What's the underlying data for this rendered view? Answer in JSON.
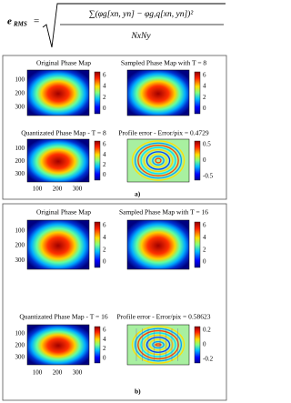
{
  "equation": {
    "lhs": "e",
    "lhs_sub": "RMS",
    "equals": "=",
    "numerator": "∑(φg[xn, yn] − φg,q[xn, yn])²",
    "denominator": "NxNy"
  },
  "panels": [
    {
      "label": "a)",
      "plots": [
        {
          "title": "Original Phase Map",
          "yticks": [
            "100",
            "200",
            "300"
          ],
          "colorbar_ticks": [
            "6",
            "4",
            "2",
            "0"
          ]
        },
        {
          "title": "Sampled Phase Map with T = 8",
          "colorbar_ticks": [
            "6",
            "4",
            "2",
            "0"
          ]
        },
        {
          "title": "Quantizated Phase Map - T = 8",
          "yticks": [
            "100",
            "200",
            "300"
          ],
          "xticks": [
            "100",
            "200",
            "300"
          ],
          "colorbar_ticks": [
            "6",
            "4",
            "2",
            "0"
          ]
        },
        {
          "title": "Profile error - Error/pix = 0.4729",
          "colorbar_ticks": [
            "0.5",
            "0",
            "-0.5"
          ]
        }
      ]
    },
    {
      "label": "b)",
      "plots": [
        {
          "title": "Original Phase Map",
          "yticks": [
            "100",
            "200",
            "300"
          ],
          "colorbar_ticks": [
            "6",
            "4",
            "2",
            "0"
          ]
        },
        {
          "title": "Sampled Phase Map with T = 16",
          "colorbar_ticks": [
            "6",
            "4",
            "2",
            "0"
          ]
        },
        {
          "title": "Quantizated Phase Map - T = 16",
          "yticks": [
            "100",
            "200",
            "300"
          ],
          "xticks": [
            "100",
            "200",
            "300"
          ],
          "colorbar_ticks": [
            "6",
            "4",
            "2",
            "0"
          ]
        },
        {
          "title": "Profile error - Error/pix = 0.58623",
          "colorbar_ticks": [
            "0.2",
            "0",
            "-0.2"
          ]
        }
      ]
    }
  ]
}
